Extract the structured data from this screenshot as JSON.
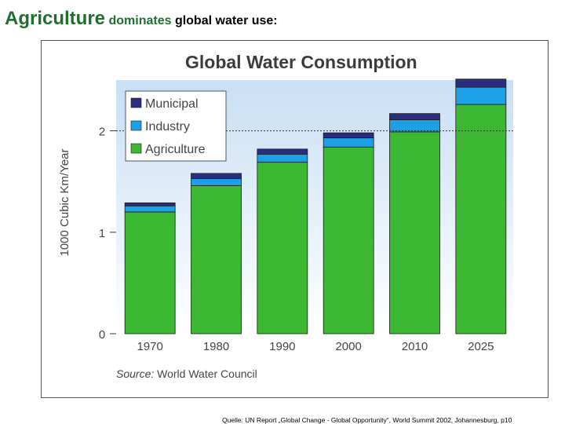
{
  "slide": {
    "title_part1": "Agriculture",
    "title_part2": "dominates",
    "title_part3": "global water use:",
    "footnote": "Quelle: UN Report „Global Change - Global Opportunity“, World Summit 2002, Johannesburg,  p10"
  },
  "source": {
    "label": "Source:",
    "text": "World Water Council"
  },
  "colors": {
    "municipal": "#2b2d82",
    "industry": "#1ea0e6",
    "agriculture": "#3cb832",
    "plot_bg_top": "#c8dff5",
    "plot_bg_bottom": "#ffffff"
  },
  "chart_data": {
    "type": "bar",
    "stacked": true,
    "title": "Global Water Consumption",
    "xlabel": "",
    "ylabel": "1000 Cubic Km/Year",
    "ylim": [
      0,
      2.5
    ],
    "yticks": [
      0,
      1,
      2
    ],
    "reference_line": 2,
    "grid": false,
    "legend_position": "top-left",
    "categories": [
      "1970",
      "1980",
      "1990",
      "2000",
      "2010",
      "2025"
    ],
    "series": [
      {
        "name": "Agriculture",
        "values": [
          1.2,
          1.46,
          1.69,
          1.84,
          1.99,
          2.26
        ]
      },
      {
        "name": "Industry",
        "values": [
          0.06,
          0.07,
          0.08,
          0.09,
          0.12,
          0.17
        ]
      },
      {
        "name": "Municipal",
        "values": [
          0.03,
          0.05,
          0.05,
          0.05,
          0.06,
          0.08
        ]
      }
    ],
    "legend": [
      "Municipal",
      "Industry",
      "Agriculture"
    ]
  }
}
